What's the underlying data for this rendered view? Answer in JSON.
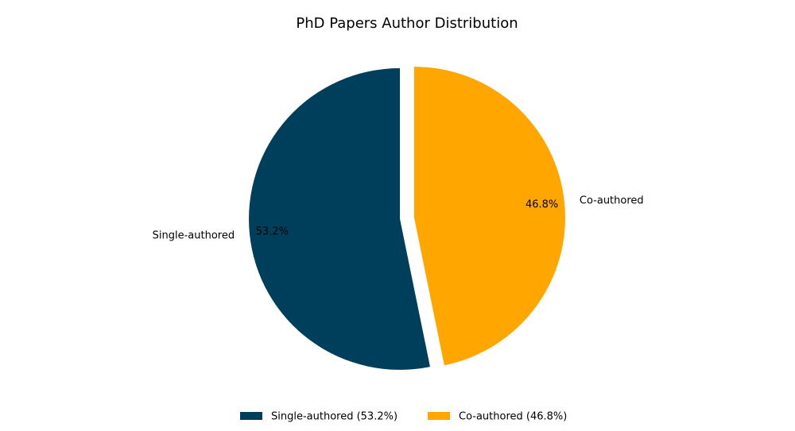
{
  "chart_data": {
    "type": "pie",
    "title": "PhD Papers Author Distribution",
    "categories": [
      "Single-authored",
      "Co-authored"
    ],
    "values": [
      53.2,
      46.8
    ],
    "value_labels": [
      "53.2%",
      "46.8%"
    ],
    "colors": [
      "#003f5c",
      "#ffa600"
    ],
    "legend_labels": [
      "Single-authored (53.2%)",
      "Co-authored (46.8%)"
    ],
    "legend": "bottom"
  }
}
